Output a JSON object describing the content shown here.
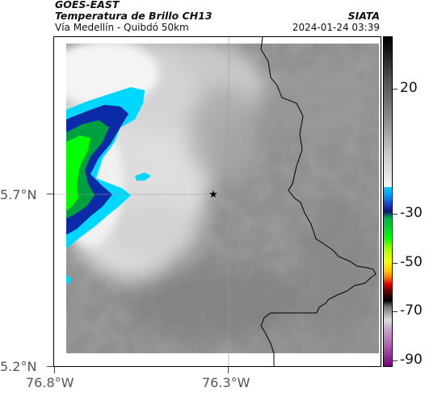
{
  "header": {
    "satellite": "GOES-EAST",
    "product": "Temperatura de Brillo CH13",
    "area": "Vía Medellín - Quibdó 50km",
    "source": "SIATA",
    "datetime": "2024-01-24 03:39"
  },
  "axes": {
    "lat_labels": [
      "5.7°N",
      "5.2°N"
    ],
    "lon_labels": [
      "76.8°W",
      "76.3°W"
    ]
  },
  "map": {
    "marker": "star-icon",
    "colors": {
      "background": "#ffffff",
      "border": "#000000",
      "coast": "#000000"
    }
  },
  "colorbar": {
    "labels": [
      "20",
      "-30",
      "-50",
      "-70",
      "-90"
    ]
  }
}
